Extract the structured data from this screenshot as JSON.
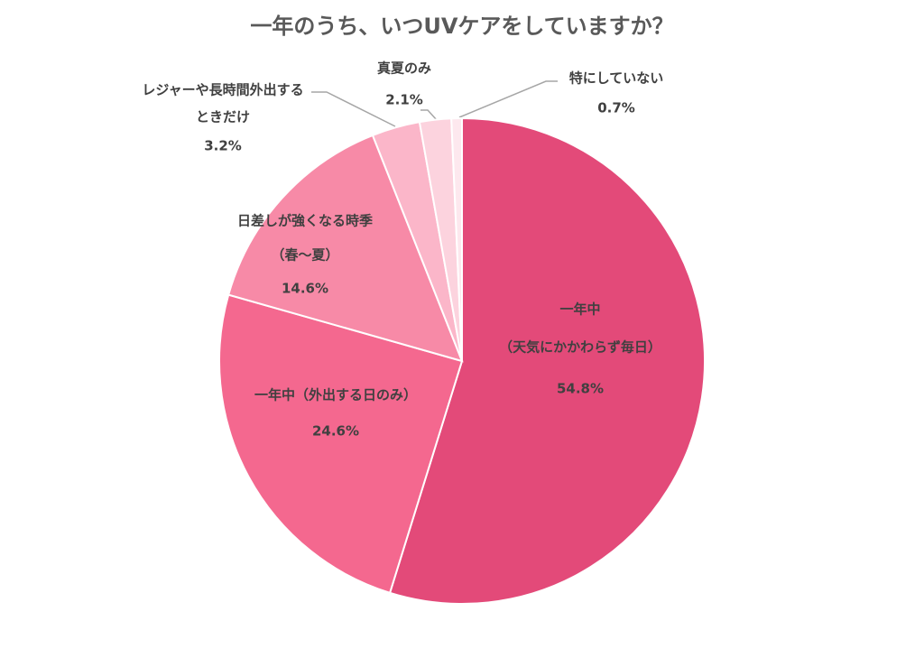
{
  "chart_data": {
    "type": "pie",
    "title": "一年のうち、いつUVケアをしていますか？",
    "categories": [
      [
        "一年中",
        "（天気にかかわらず毎日）"
      ],
      [
        "一年中（外出する日のみ）"
      ],
      [
        "日差しが強くなる時季",
        "（春～夏）"
      ],
      [
        "レジャーや長時間外出する",
        "ときだけ"
      ],
      [
        "真夏のみ"
      ],
      [
        "特にしていない"
      ]
    ],
    "values": [
      54.8,
      24.6,
      14.6,
      3.2,
      2.1,
      0.7
    ],
    "value_labels": [
      "54.8%",
      "24.6%",
      "14.6%",
      "3.2%",
      "2.1%",
      "0.7%"
    ],
    "colors": [
      "#e34a79",
      "#f4688f",
      "#f78aa7",
      "#fbb6c9",
      "#fcd3de",
      "#fde8ee"
    ]
  }
}
